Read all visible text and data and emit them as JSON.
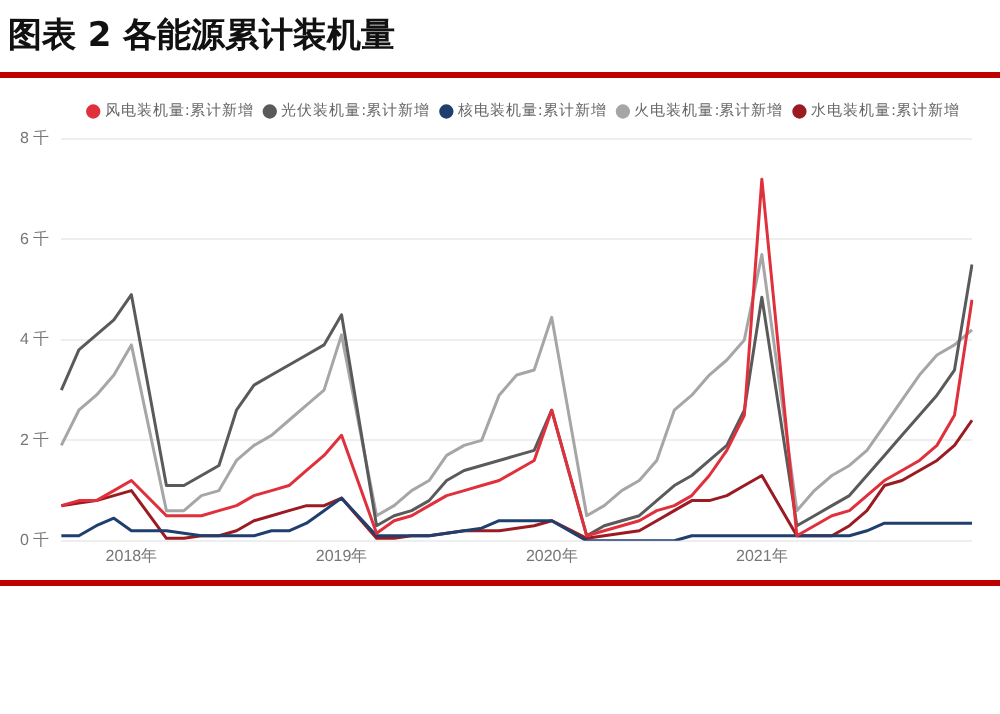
{
  "chart_data": {
    "type": "line",
    "title": "图表 2 各能源累计装机量",
    "categories": [
      null,
      null,
      null,
      null,
      "2018年",
      null,
      null,
      null,
      null,
      null,
      null,
      null,
      null,
      null,
      null,
      null,
      "2019年",
      null,
      null,
      null,
      null,
      null,
      null,
      null,
      null,
      null,
      null,
      null,
      "2020年",
      null,
      null,
      null,
      null,
      null,
      null,
      null,
      null,
      null,
      null,
      null,
      "2021年",
      null,
      null,
      null,
      null,
      null,
      null,
      null,
      null,
      null,
      null,
      null,
      null
    ],
    "series": [
      {
        "name": "风电装机量:累计新增",
        "color": "#e0303c",
        "values": [
          0.7,
          0.8,
          0.8,
          1.0,
          1.2,
          null,
          0.5,
          0.5,
          0.5,
          0.6,
          0.7,
          0.9,
          1.0,
          1.1,
          1.4,
          1.7,
          2.1,
          null,
          0.15,
          0.4,
          0.5,
          0.7,
          0.9,
          1.0,
          1.1,
          1.2,
          1.4,
          1.6,
          2.6,
          null,
          0.1,
          0.2,
          0.3,
          0.4,
          0.6,
          0.7,
          0.9,
          1.3,
          1.8,
          2.5,
          7.2,
          null,
          0.1,
          0.3,
          0.5,
          0.6,
          0.9,
          1.2,
          1.4,
          1.6,
          1.9,
          2.5,
          4.8
        ]
      },
      {
        "name": "光伏装机量:累计新增",
        "color": "#5a5a5a",
        "values": [
          3.0,
          3.8,
          4.1,
          4.4,
          4.9,
          null,
          1.1,
          1.1,
          1.3,
          1.5,
          2.6,
          3.1,
          3.3,
          3.5,
          3.7,
          3.9,
          4.5,
          null,
          0.3,
          0.5,
          0.6,
          0.8,
          1.2,
          1.4,
          1.5,
          1.6,
          1.7,
          1.8,
          2.6,
          null,
          0.1,
          0.3,
          0.4,
          0.5,
          0.8,
          1.1,
          1.3,
          1.6,
          1.9,
          2.6,
          4.85,
          null,
          0.3,
          0.5,
          0.7,
          0.9,
          1.3,
          1.7,
          2.1,
          2.5,
          2.9,
          3.4,
          5.5
        ]
      },
      {
        "name": "核电装机量:累计新增",
        "color": "#1f3f6e",
        "values": [
          0.1,
          0.1,
          0.3,
          0.45,
          0.2,
          null,
          0.2,
          0.15,
          0.1,
          0.1,
          0.1,
          0.1,
          0.2,
          0.2,
          0.35,
          0.6,
          0.85,
          null,
          0.1,
          0.1,
          0.1,
          0.1,
          0.15,
          0.2,
          0.25,
          0.4,
          0.4,
          0.4,
          0.4,
          null,
          0.0,
          0.0,
          0.0,
          0.0,
          0.0,
          0.0,
          0.1,
          0.1,
          0.1,
          0.1,
          0.1,
          null,
          0.1,
          0.1,
          0.1,
          0.1,
          0.2,
          0.35,
          0.35,
          0.35,
          0.35,
          0.35,
          0.35
        ]
      },
      {
        "name": "火电装机量:累计新增",
        "color": "#a6a6a6",
        "values": [
          1.9,
          2.6,
          2.9,
          3.3,
          3.9,
          null,
          0.6,
          0.6,
          0.9,
          1.0,
          1.6,
          1.9,
          2.1,
          2.4,
          2.7,
          3.0,
          4.1,
          null,
          0.5,
          0.7,
          1.0,
          1.2,
          1.7,
          1.9,
          2.0,
          2.9,
          3.3,
          3.4,
          4.45,
          null,
          0.5,
          0.7,
          1.0,
          1.2,
          1.6,
          2.6,
          2.9,
          3.3,
          3.6,
          4.0,
          5.7,
          null,
          0.6,
          1.0,
          1.3,
          1.5,
          1.8,
          2.3,
          2.8,
          3.3,
          3.7,
          3.9,
          4.2
        ]
      },
      {
        "name": "水电装机量:累计新增",
        "color": "#9b1b22",
        "values": [
          0.7,
          0.75,
          0.8,
          0.9,
          1.0,
          null,
          0.05,
          0.05,
          0.1,
          0.1,
          0.2,
          0.4,
          0.5,
          0.6,
          0.7,
          0.7,
          0.85,
          null,
          0.05,
          0.05,
          0.1,
          0.1,
          0.15,
          0.2,
          0.2,
          0.2,
          0.25,
          0.3,
          0.4,
          null,
          0.05,
          0.1,
          0.15,
          0.2,
          0.4,
          0.6,
          0.8,
          0.8,
          0.9,
          1.1,
          1.3,
          null,
          0.1,
          0.1,
          0.1,
          0.3,
          0.6,
          1.1,
          1.2,
          1.4,
          1.6,
          1.9,
          2.4
        ]
      }
    ],
    "ylim": [
      0,
      8
    ],
    "yticks": [
      {
        "value": 0,
        "label": "0 千"
      },
      {
        "value": 2,
        "label": "2 千"
      },
      {
        "value": 4,
        "label": "4 千"
      },
      {
        "value": 6,
        "label": "6 千"
      },
      {
        "value": 8,
        "label": "8 千"
      }
    ],
    "grid": "y",
    "legend": "top",
    "marker": "none",
    "line_style": "solid"
  }
}
